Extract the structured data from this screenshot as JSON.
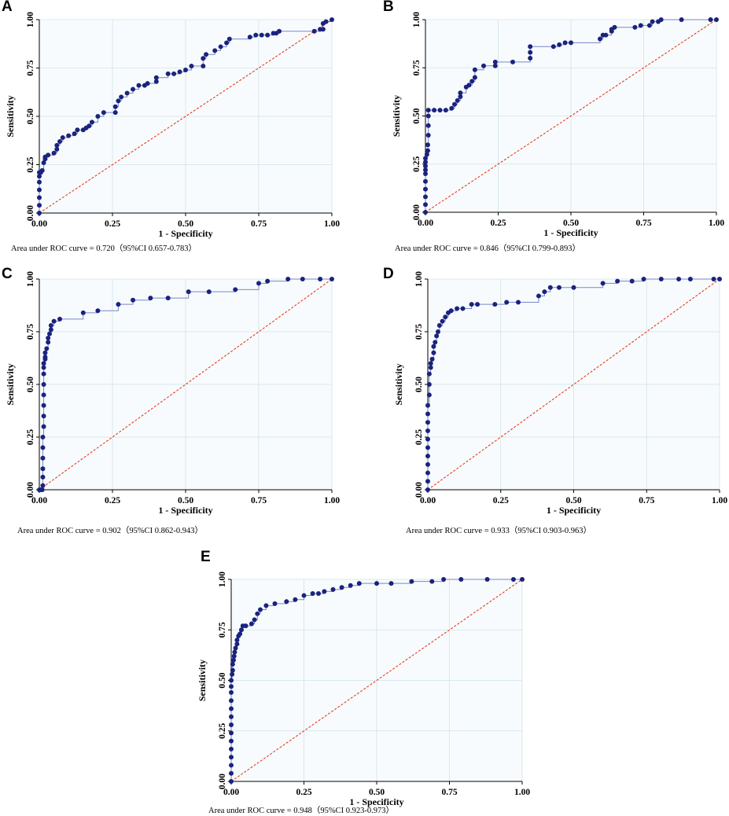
{
  "colors": {
    "roc_point": "#1a237e",
    "roc_line": "#7986cb",
    "diagonal": "#e53d1a",
    "grid": "#cfe3ea",
    "plot_bg": "#f8fbfd"
  },
  "chart_data": [
    {
      "panel": "A",
      "type": "line",
      "xlabel": "1 - Specificity",
      "ylabel": "Sensitivity",
      "xlim": [
        0,
        1
      ],
      "ylim": [
        0,
        1
      ],
      "xticks": [
        "0.00",
        "0.25",
        "0.50",
        "0.75",
        "1.00"
      ],
      "yticks": [
        "0.00",
        "0.25",
        "0.50",
        "0.75",
        "1.00"
      ],
      "auc_text": "Area under ROC curve = 0.720（95%CI 0.657-0.783）",
      "x": [
        0,
        0,
        0,
        0,
        0,
        0,
        0,
        0.005,
        0.01,
        0.015,
        0.02,
        0.02,
        0.03,
        0.05,
        0.06,
        0.06,
        0.07,
        0.08,
        0.1,
        0.12,
        0.13,
        0.15,
        0.16,
        0.17,
        0.18,
        0.2,
        0.22,
        0.26,
        0.26,
        0.27,
        0.28,
        0.3,
        0.32,
        0.34,
        0.36,
        0.37,
        0.4,
        0.4,
        0.44,
        0.46,
        0.48,
        0.5,
        0.52,
        0.56,
        0.56,
        0.57,
        0.6,
        0.62,
        0.64,
        0.65,
        0.72,
        0.74,
        0.76,
        0.78,
        0.8,
        0.81,
        0.82,
        0.94,
        0.96,
        0.97,
        0.97,
        0.98,
        1
      ],
      "y": [
        0,
        0.04,
        0.08,
        0.12,
        0.16,
        0.19,
        0.21,
        0.21,
        0.22,
        0.26,
        0.28,
        0.29,
        0.3,
        0.31,
        0.33,
        0.35,
        0.37,
        0.39,
        0.4,
        0.41,
        0.43,
        0.43,
        0.44,
        0.45,
        0.47,
        0.5,
        0.52,
        0.52,
        0.55,
        0.58,
        0.6,
        0.62,
        0.64,
        0.66,
        0.66,
        0.67,
        0.68,
        0.7,
        0.72,
        0.72,
        0.73,
        0.74,
        0.76,
        0.76,
        0.8,
        0.82,
        0.84,
        0.86,
        0.88,
        0.9,
        0.91,
        0.92,
        0.92,
        0.92,
        0.93,
        0.93,
        0.94,
        0.94,
        0.95,
        0.95,
        0.98,
        0.99,
        1
      ]
    },
    {
      "panel": "B",
      "type": "line",
      "xlabel": "1 - Specificity",
      "ylabel": "Sensitivity",
      "xlim": [
        0,
        1
      ],
      "ylim": [
        0,
        1
      ],
      "xticks": [
        "0.00",
        "0.25",
        "0.50",
        "0.75",
        "1.00"
      ],
      "yticks": [
        "0.00",
        "0.25",
        "0.50",
        "0.75",
        "1.00"
      ],
      "auc_text": "Area under ROC curve = 0.846（95%CI 0.799-0.893）",
      "x": [
        0,
        0,
        0,
        0,
        0,
        0,
        0,
        0,
        0,
        0,
        0.005,
        0.008,
        0.008,
        0.01,
        0.01,
        0.01,
        0.01,
        0.03,
        0.05,
        0.07,
        0.09,
        0.1,
        0.11,
        0.12,
        0.12,
        0.14,
        0.15,
        0.16,
        0.17,
        0.17,
        0.2,
        0.24,
        0.24,
        0.3,
        0.36,
        0.36,
        0.36,
        0.44,
        0.46,
        0.48,
        0.5,
        0.6,
        0.61,
        0.62,
        0.64,
        0.64,
        0.65,
        0.72,
        0.74,
        0.77,
        0.78,
        0.8,
        0.81,
        0.88,
        0.98,
        1
      ],
      "y": [
        0,
        0.04,
        0.08,
        0.12,
        0.16,
        0.2,
        0.22,
        0.24,
        0.26,
        0.28,
        0.3,
        0.32,
        0.35,
        0.4,
        0.45,
        0.5,
        0.53,
        0.53,
        0.53,
        0.53,
        0.54,
        0.56,
        0.58,
        0.6,
        0.62,
        0.65,
        0.66,
        0.68,
        0.7,
        0.74,
        0.76,
        0.76,
        0.78,
        0.78,
        0.8,
        0.83,
        0.86,
        0.86,
        0.87,
        0.88,
        0.88,
        0.9,
        0.92,
        0.92,
        0.94,
        0.95,
        0.96,
        0.96,
        0.97,
        0.97,
        0.99,
        0.99,
        1,
        1,
        1,
        1
      ]
    },
    {
      "panel": "C",
      "type": "line",
      "xlabel": "1 - Specificity",
      "ylabel": "Sensitivity",
      "xlim": [
        0,
        1
      ],
      "ylim": [
        0,
        1
      ],
      "xticks": [
        "0.00",
        "0.25",
        "0.50",
        "0.75",
        "1.00"
      ],
      "yticks": [
        "0.00",
        "0.25",
        "0.50",
        "0.75",
        "1.00"
      ],
      "auc_text": "Area under ROC curve = 0.902（95%CI 0.862-0.943）",
      "x": [
        0,
        0.005,
        0.01,
        0.012,
        0.012,
        0.012,
        0.012,
        0.012,
        0.012,
        0.015,
        0.015,
        0.015,
        0.015,
        0.015,
        0.015,
        0.015,
        0.015,
        0.02,
        0.02,
        0.02,
        0.025,
        0.03,
        0.03,
        0.035,
        0.04,
        0.04,
        0.05,
        0.07,
        0.15,
        0.2,
        0.27,
        0.32,
        0.38,
        0.44,
        0.51,
        0.58,
        0.67,
        0.75,
        0.78,
        0.85,
        0.9,
        0.96,
        1
      ],
      "y": [
        0,
        0,
        0,
        0.02,
        0.06,
        0.1,
        0.15,
        0.2,
        0.25,
        0.3,
        0.35,
        0.4,
        0.45,
        0.5,
        0.55,
        0.58,
        0.6,
        0.62,
        0.63,
        0.65,
        0.67,
        0.7,
        0.72,
        0.74,
        0.76,
        0.78,
        0.8,
        0.81,
        0.84,
        0.85,
        0.88,
        0.9,
        0.91,
        0.91,
        0.94,
        0.94,
        0.95,
        0.98,
        0.99,
        1,
        1,
        1,
        1
      ]
    },
    {
      "panel": "D",
      "type": "line",
      "xlabel": "1 - Specificity",
      "ylabel": "Sensitivity",
      "xlim": [
        0,
        1
      ],
      "ylim": [
        0,
        1
      ],
      "xticks": [
        "0.00",
        "0.25",
        "0.50",
        "0.75",
        "1.00"
      ],
      "yticks": [
        "0.00",
        "0.25",
        "0.50",
        "0.75",
        "1.00"
      ],
      "auc_text": "Area under ROC curve = 0.933（95%CI 0.903-0.963）",
      "x": [
        0,
        0,
        0,
        0,
        0,
        0,
        0,
        0,
        0,
        0,
        0,
        0.005,
        0.005,
        0.005,
        0.01,
        0.01,
        0.015,
        0.02,
        0.02,
        0.025,
        0.03,
        0.035,
        0.04,
        0.05,
        0.06,
        0.07,
        0.08,
        0.1,
        0.12,
        0.15,
        0.17,
        0.23,
        0.27,
        0.31,
        0.38,
        0.4,
        0.42,
        0.45,
        0.5,
        0.6,
        0.65,
        0.7,
        0.74,
        0.8,
        0.86,
        0.9,
        0.98,
        1
      ],
      "y": [
        0,
        0.04,
        0.08,
        0.12,
        0.16,
        0.2,
        0.24,
        0.28,
        0.32,
        0.36,
        0.4,
        0.45,
        0.5,
        0.55,
        0.58,
        0.6,
        0.62,
        0.65,
        0.68,
        0.7,
        0.73,
        0.75,
        0.78,
        0.8,
        0.82,
        0.84,
        0.85,
        0.86,
        0.86,
        0.88,
        0.88,
        0.88,
        0.89,
        0.89,
        0.92,
        0.94,
        0.96,
        0.96,
        0.96,
        0.98,
        0.99,
        0.99,
        1,
        1,
        1,
        1,
        1,
        1
      ]
    },
    {
      "panel": "E",
      "type": "line",
      "xlabel": "1 - Specificity",
      "ylabel": "Sensitivity",
      "xlim": [
        0,
        1
      ],
      "ylim": [
        0,
        1
      ],
      "xticks": [
        "0.00",
        "0.25",
        "0.50",
        "0.75",
        "1.00"
      ],
      "yticks": [
        "0.00",
        "0.25",
        "0.50",
        "0.75",
        "1.00"
      ],
      "auc_text": "Area under ROC curve = 0.948（95%CI 0.923-0.973）",
      "x": [
        0,
        0,
        0,
        0,
        0,
        0,
        0,
        0,
        0,
        0,
        0,
        0,
        0,
        0,
        0.003,
        0.005,
        0.005,
        0.008,
        0.01,
        0.012,
        0.015,
        0.02,
        0.02,
        0.025,
        0.03,
        0.035,
        0.04,
        0.05,
        0.07,
        0.08,
        0.09,
        0.1,
        0.12,
        0.15,
        0.19,
        0.22,
        0.25,
        0.28,
        0.3,
        0.32,
        0.35,
        0.38,
        0.41,
        0.44,
        0.5,
        0.55,
        0.62,
        0.69,
        0.73,
        0.79,
        0.88,
        0.97,
        1
      ],
      "y": [
        0,
        0.04,
        0.08,
        0.12,
        0.16,
        0.2,
        0.24,
        0.28,
        0.32,
        0.36,
        0.4,
        0.44,
        0.47,
        0.5,
        0.53,
        0.55,
        0.58,
        0.6,
        0.62,
        0.64,
        0.66,
        0.68,
        0.7,
        0.72,
        0.73,
        0.75,
        0.77,
        0.77,
        0.78,
        0.8,
        0.83,
        0.85,
        0.87,
        0.88,
        0.89,
        0.9,
        0.92,
        0.93,
        0.93,
        0.94,
        0.95,
        0.96,
        0.97,
        0.98,
        0.98,
        0.98,
        0.99,
        0.99,
        1,
        1,
        1,
        1,
        1
      ]
    }
  ]
}
